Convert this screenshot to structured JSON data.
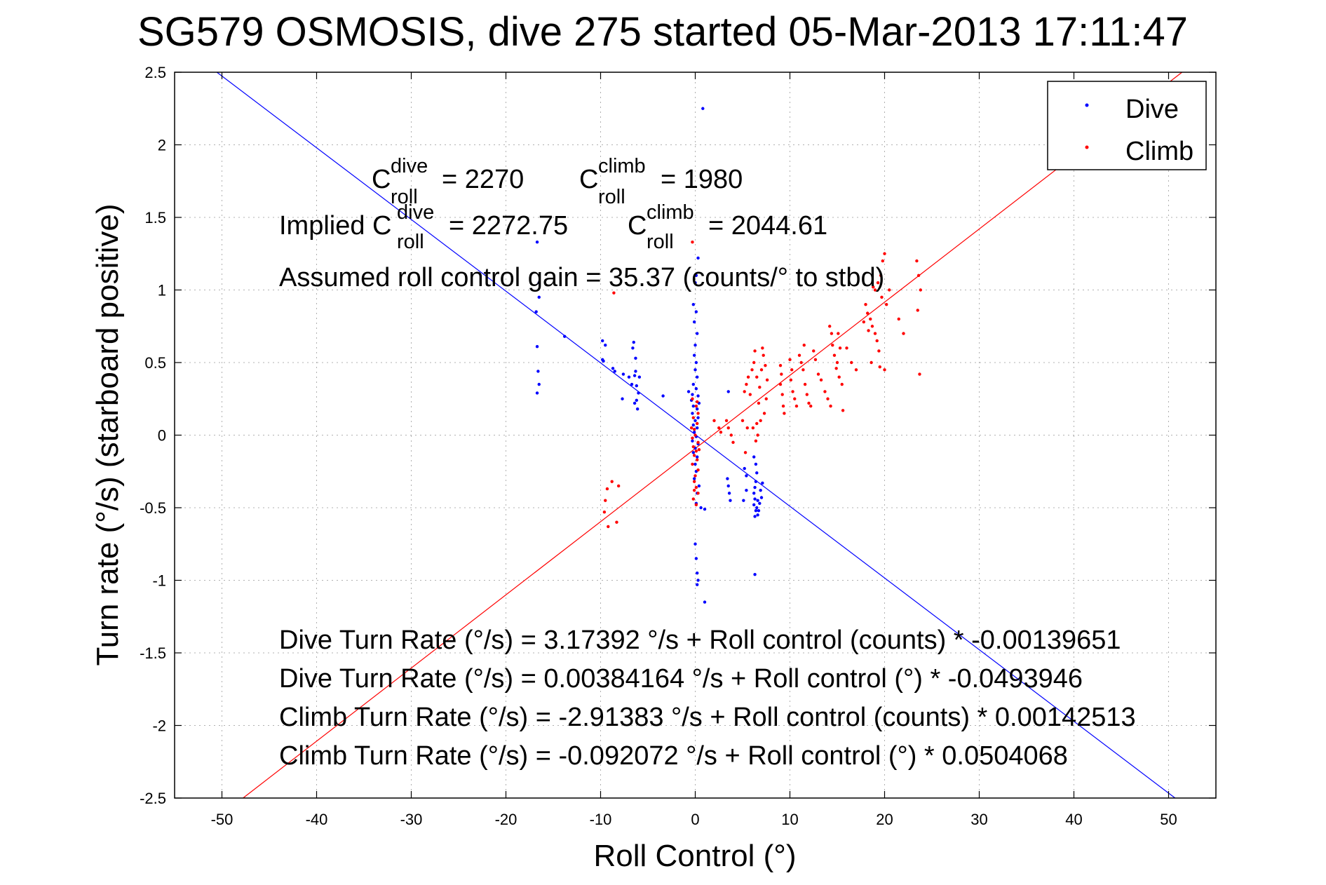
{
  "chart_data": {
    "type": "scatter",
    "title": "SG579 OSMOSIS, dive 275 started 05-Mar-2013 17:11:47",
    "xlabel": "Roll Control (°)",
    "ylabel": "Turn rate (°/s) (starboard positive)",
    "xlim": [
      -55,
      55
    ],
    "ylim": [
      -2.5,
      2.5
    ],
    "xticks": [
      -50,
      -40,
      -30,
      -20,
      -10,
      0,
      10,
      20,
      30,
      40,
      50
    ],
    "yticks": [
      -2.5,
      -2,
      -1.5,
      -1,
      -0.5,
      0,
      0.5,
      1,
      1.5,
      2,
      2.5
    ],
    "grid": true,
    "legend": {
      "placement": "top-right",
      "entries": [
        {
          "label": "Dive",
          "color": "#0000ff"
        },
        {
          "label": "Climb",
          "color": "#ff0000"
        }
      ]
    },
    "annotations": {
      "c_dive": {
        "base": "C",
        "sup": "dive",
        "sub": "roll",
        "value": "= 2270"
      },
      "c_climb": {
        "base": "C",
        "sup": "climb",
        "sub": "roll",
        "value": "= 1980"
      },
      "implied_prefix": "Implied C",
      "implied_dive": {
        "sup": "dive",
        "sub": "roll",
        "value": "= 2272.75"
      },
      "implied_climb": {
        "base": "C",
        "sup": "climb",
        "sub": "roll",
        "value": "= 2044.61"
      },
      "gain": "Assumed roll control gain = 35.37 (counts/° to stbd)",
      "fit_lines": [
        "Dive Turn Rate (°/s) = 3.17392 °/s + Roll control (counts) * -0.00139651",
        "Dive Turn Rate (°/s) = 0.00384164 °/s + Roll control (°) * -0.0493946",
        "Climb Turn Rate (°/s) = -2.91383 °/s + Roll control (counts) * 0.00142513",
        "Climb Turn Rate (°/s) = -0.092072 °/s + Roll control (°) * 0.0504068"
      ]
    },
    "fits": [
      {
        "name": "Dive",
        "color": "#0000ff",
        "intercept": 0.00384164,
        "slope": -0.0493946
      },
      {
        "name": "Climb",
        "color": "#ff0000",
        "intercept": -0.092072,
        "slope": 0.0504068
      }
    ],
    "series": [
      {
        "name": "Dive",
        "color": "#0000ff",
        "points": [
          [
            0.8,
            2.25
          ],
          [
            -16.7,
            1.33
          ],
          [
            -16.5,
            1.05
          ],
          [
            -16.5,
            0.95
          ],
          [
            -16.8,
            0.85
          ],
          [
            -16.7,
            0.61
          ],
          [
            -16.6,
            0.44
          ],
          [
            -16.5,
            0.35
          ],
          [
            -16.7,
            0.29
          ],
          [
            -13.8,
            0.68
          ],
          [
            -9.8,
            0.65
          ],
          [
            -9.5,
            0.62
          ],
          [
            -9.8,
            0.52
          ],
          [
            -9.7,
            0.51
          ],
          [
            -8.7,
            0.46
          ],
          [
            -8.5,
            0.44
          ],
          [
            -7.6,
            0.42
          ],
          [
            -7.0,
            0.4
          ],
          [
            -6.7,
            0.35
          ],
          [
            -6.5,
            0.64
          ],
          [
            -6.6,
            0.6
          ],
          [
            -6.3,
            0.53
          ],
          [
            -6.3,
            0.44
          ],
          [
            -6.4,
            0.41
          ],
          [
            -6.2,
            0.34
          ],
          [
            -5.9,
            0.4
          ],
          [
            -6.0,
            0.29
          ],
          [
            -6.2,
            0.24
          ],
          [
            -6.4,
            0.22
          ],
          [
            -6.1,
            0.18
          ],
          [
            -7.7,
            0.25
          ],
          [
            -3.4,
            0.27
          ],
          [
            -0.7,
            0.3
          ],
          [
            0.3,
            1.22
          ],
          [
            0.1,
            1.1
          ],
          [
            0.0,
            1.05
          ],
          [
            -0.2,
            0.9
          ],
          [
            0.1,
            0.85
          ],
          [
            -0.1,
            0.78
          ],
          [
            0.2,
            0.7
          ],
          [
            0.0,
            0.62
          ],
          [
            -0.1,
            0.55
          ],
          [
            0.1,
            0.5
          ],
          [
            0.0,
            0.45
          ],
          [
            0.2,
            0.4
          ],
          [
            -0.2,
            0.35
          ],
          [
            0.1,
            0.32
          ],
          [
            -0.3,
            0.28
          ],
          [
            0.3,
            0.27
          ],
          [
            -0.4,
            0.24
          ],
          [
            0.4,
            0.22
          ],
          [
            -0.2,
            0.2
          ],
          [
            0.2,
            0.18
          ],
          [
            -0.3,
            0.15
          ],
          [
            0.3,
            0.12
          ],
          [
            0.0,
            0.1
          ],
          [
            -0.2,
            0.07
          ],
          [
            0.2,
            0.05
          ],
          [
            -0.1,
            0.02
          ],
          [
            0.1,
            -0.01
          ],
          [
            -0.3,
            -0.04
          ],
          [
            0.3,
            -0.06
          ],
          [
            0.0,
            -0.09
          ],
          [
            -0.2,
            -0.12
          ],
          [
            0.2,
            -0.15
          ],
          [
            0.0,
            -0.2
          ],
          [
            0.1,
            -0.25
          ],
          [
            -0.1,
            -0.3
          ],
          [
            0.4,
            -0.35
          ],
          [
            0.2,
            -0.4
          ],
          [
            0.1,
            -0.47
          ],
          [
            0.6,
            -0.5
          ],
          [
            1.0,
            -0.51
          ],
          [
            0.0,
            -0.75
          ],
          [
            0.1,
            -0.85
          ],
          [
            0.2,
            -0.95
          ],
          [
            0.3,
            -1.0
          ],
          [
            0.2,
            -1.03
          ],
          [
            1.0,
            -1.15
          ],
          [
            3.4,
            -0.3
          ],
          [
            3.5,
            -0.35
          ],
          [
            3.6,
            -0.4
          ],
          [
            3.7,
            -0.45
          ],
          [
            5.1,
            -0.45
          ],
          [
            5.4,
            -0.38
          ],
          [
            5.4,
            -0.28
          ],
          [
            5.2,
            -0.23
          ],
          [
            6.2,
            -0.15
          ],
          [
            6.4,
            -0.2
          ],
          [
            6.5,
            -0.26
          ],
          [
            6.4,
            -0.32
          ],
          [
            6.3,
            -0.36
          ],
          [
            6.2,
            -0.4
          ],
          [
            6.6,
            -0.45
          ],
          [
            6.5,
            -0.5
          ],
          [
            6.6,
            -0.55
          ],
          [
            6.7,
            -0.52
          ],
          [
            6.8,
            -0.47
          ],
          [
            7.0,
            -0.43
          ],
          [
            6.9,
            -0.38
          ],
          [
            7.1,
            -0.33
          ],
          [
            6.3,
            -0.56
          ],
          [
            6.4,
            -0.52
          ],
          [
            6.2,
            -0.48
          ],
          [
            6.3,
            -0.44
          ],
          [
            6.3,
            -0.96
          ],
          [
            3.5,
            0.3
          ]
        ]
      },
      {
        "name": "Climb",
        "color": "#ff0000",
        "points": [
          [
            -0.3,
            0.25
          ],
          [
            0.1,
            0.2
          ],
          [
            0.3,
            0.15
          ],
          [
            -0.2,
            0.12
          ],
          [
            0.2,
            0.08
          ],
          [
            -0.1,
            0.04
          ],
          [
            0.0,
            0.0
          ],
          [
            -0.3,
            -0.02
          ],
          [
            0.3,
            -0.05
          ],
          [
            -0.2,
            -0.08
          ],
          [
            0.1,
            -0.11
          ],
          [
            -0.1,
            -0.14
          ],
          [
            0.2,
            -0.17
          ],
          [
            -0.3,
            -0.2
          ],
          [
            0.3,
            -0.24
          ],
          [
            0.0,
            -0.28
          ],
          [
            -0.1,
            -0.32
          ],
          [
            0.1,
            -0.36
          ],
          [
            0.3,
            -0.4
          ],
          [
            -0.2,
            -0.44
          ],
          [
            0.1,
            -0.48
          ],
          [
            0.4,
            -0.1
          ],
          [
            -0.4,
            0.05
          ],
          [
            0.2,
            0.23
          ],
          [
            -0.1,
            -0.38
          ],
          [
            -0.3,
            1.33
          ],
          [
            2.0,
            0.1
          ],
          [
            2.5,
            0.05
          ],
          [
            2.7,
            0.02
          ],
          [
            -8.6,
            0.98
          ],
          [
            -8.8,
            -0.32
          ],
          [
            -9.3,
            -0.37
          ],
          [
            -9.5,
            -0.45
          ],
          [
            -9.6,
            -0.53
          ],
          [
            -9.2,
            -0.63
          ],
          [
            -8.3,
            -0.6
          ],
          [
            -8.1,
            -0.35
          ],
          [
            3.3,
            0.1
          ],
          [
            3.5,
            0.05
          ],
          [
            3.8,
            0.0
          ],
          [
            4.0,
            -0.05
          ],
          [
            5.0,
            0.1
          ],
          [
            5.3,
            -0.12
          ],
          [
            5.5,
            0.05
          ],
          [
            5.2,
            0.3
          ],
          [
            5.4,
            0.35
          ],
          [
            5.6,
            0.4
          ],
          [
            5.8,
            0.28
          ],
          [
            6.0,
            0.45
          ],
          [
            6.2,
            0.5
          ],
          [
            6.3,
            0.58
          ],
          [
            6.5,
            0.4
          ],
          [
            6.7,
            0.22
          ],
          [
            6.9,
            0.1
          ],
          [
            6.6,
            0.0
          ],
          [
            6.4,
            -0.04
          ],
          [
            6.8,
            0.33
          ],
          [
            7.0,
            0.45
          ],
          [
            7.2,
            0.55
          ],
          [
            7.1,
            0.6
          ],
          [
            7.4,
            0.48
          ],
          [
            7.6,
            0.38
          ],
          [
            7.5,
            0.25
          ],
          [
            7.3,
            0.15
          ],
          [
            6.1,
            0.05
          ],
          [
            6.5,
            0.08
          ],
          [
            9.0,
            0.48
          ],
          [
            9.1,
            0.42
          ],
          [
            9.0,
            0.35
          ],
          [
            9.2,
            0.28
          ],
          [
            9.3,
            0.2
          ],
          [
            9.4,
            0.15
          ],
          [
            10.0,
            0.52
          ],
          [
            10.2,
            0.45
          ],
          [
            10.1,
            0.38
          ],
          [
            10.3,
            0.3
          ],
          [
            10.5,
            0.25
          ],
          [
            10.7,
            0.2
          ],
          [
            11.0,
            0.55
          ],
          [
            11.2,
            0.5
          ],
          [
            11.4,
            0.45
          ],
          [
            11.6,
            0.35
          ],
          [
            11.8,
            0.28
          ],
          [
            12.0,
            0.22
          ],
          [
            12.2,
            0.2
          ],
          [
            11.5,
            0.62
          ],
          [
            12.5,
            0.58
          ],
          [
            12.7,
            0.52
          ],
          [
            13.0,
            0.42
          ],
          [
            13.3,
            0.38
          ],
          [
            13.7,
            0.3
          ],
          [
            14.0,
            0.25
          ],
          [
            14.3,
            0.2
          ],
          [
            14.5,
            0.62
          ],
          [
            14.7,
            0.55
          ],
          [
            14.9,
            0.46
          ],
          [
            15.2,
            0.4
          ],
          [
            15.5,
            0.35
          ],
          [
            14.4,
            0.7
          ],
          [
            14.2,
            0.75
          ],
          [
            15.1,
            0.7
          ],
          [
            15.3,
            0.6
          ],
          [
            15.0,
            0.5
          ],
          [
            16.0,
            0.6
          ],
          [
            15.6,
            0.17
          ],
          [
            16.5,
            0.5
          ],
          [
            17.0,
            0.45
          ],
          [
            18.0,
            0.9
          ],
          [
            18.2,
            0.84
          ],
          [
            18.5,
            0.8
          ],
          [
            18.7,
            0.75
          ],
          [
            19.0,
            0.7
          ],
          [
            19.2,
            0.65
          ],
          [
            19.4,
            0.58
          ],
          [
            19.0,
            1.0
          ],
          [
            19.3,
            1.05
          ],
          [
            19.6,
            1.1
          ],
          [
            19.8,
            1.2
          ],
          [
            20.0,
            1.25
          ],
          [
            19.7,
            0.95
          ],
          [
            20.2,
            0.9
          ],
          [
            18.6,
            0.5
          ],
          [
            19.5,
            0.47
          ],
          [
            20.0,
            0.45
          ],
          [
            18.8,
            1.02
          ],
          [
            23.4,
            1.2
          ],
          [
            23.6,
            1.1
          ],
          [
            23.8,
            1.0
          ],
          [
            23.5,
            0.86
          ],
          [
            23.7,
            0.42
          ],
          [
            17.8,
            0.78
          ],
          [
            18.3,
            0.72
          ],
          [
            20.5,
            1.0
          ],
          [
            21.5,
            0.8
          ],
          [
            22.0,
            0.7
          ]
        ]
      }
    ]
  }
}
